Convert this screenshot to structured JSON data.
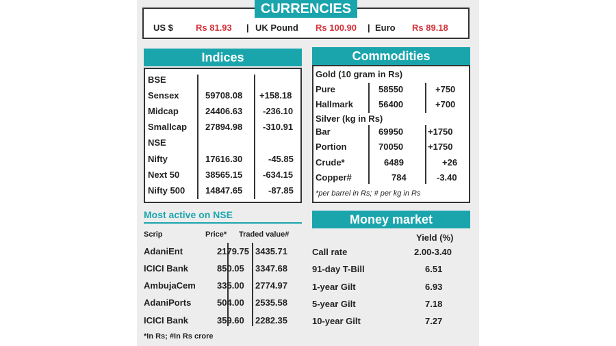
{
  "currencies": {
    "title": "CURRENCIES",
    "items": [
      {
        "name": "US $",
        "value": "Rs 81.93"
      },
      {
        "name": "UK Pound",
        "value": "Rs 100.90"
      },
      {
        "name": "Euro",
        "value": "Rs 89.18"
      }
    ],
    "separator": "|"
  },
  "indices": {
    "title": "Indices",
    "bse_label": "BSE",
    "nse_label": "NSE",
    "bse": [
      {
        "name": "Sensex",
        "value": "59708.08",
        "change": "+158.18"
      },
      {
        "name": "Midcap",
        "value": "24406.63",
        "change": "-236.10"
      },
      {
        "name": "Smallcap",
        "value": "27894.98",
        "change": "-310.91"
      }
    ],
    "nse": [
      {
        "name": "Nifty",
        "value": "17616.30",
        "change": "-45.85"
      },
      {
        "name": "Next 50",
        "value": "38565.15",
        "change": "-634.15"
      },
      {
        "name": "Nifty 500",
        "value": "14847.65",
        "change": "-87.85"
      }
    ]
  },
  "commodities": {
    "title": "Commodities",
    "gold_label": "Gold  (10 gram in Rs)",
    "silver_label": "Silver (kg in Rs)",
    "gold": [
      {
        "name": "Pure",
        "value": "58550",
        "change": "+750"
      },
      {
        "name": "Hallmark",
        "value": "56400",
        "change": "+700"
      }
    ],
    "silver": [
      {
        "name": "Bar",
        "value": "69950",
        "change": "+1750"
      },
      {
        "name": "Portion",
        "value": "70050",
        "change": "+1750"
      }
    ],
    "others": [
      {
        "name": "Crude*",
        "value": "6489",
        "change": "+26"
      },
      {
        "name": "Copper#",
        "value": "784",
        "change": "-3.40"
      }
    ],
    "footnote": "*per barrel in Rs; # per kg in Rs"
  },
  "most_active": {
    "title": "Most active on NSE",
    "headers": [
      "Scrip",
      "Price*",
      "Traded value#"
    ],
    "rows": [
      {
        "scrip": "AdaniEnt",
        "price": "2179.75",
        "traded": "3435.71"
      },
      {
        "scrip": "ICICI Bank",
        "price": "850.05",
        "traded": "3347.68"
      },
      {
        "scrip": "AmbujaCem",
        "price": "335.00",
        "traded": "2774.97"
      },
      {
        "scrip": "AdaniPorts",
        "price": "504.00",
        "traded": "2535.58"
      },
      {
        "scrip": "ICICI Bank",
        "price": "359.60",
        "traded": "2282.35"
      }
    ],
    "footnote": "*In Rs; #In Rs crore"
  },
  "money_market": {
    "title": "Money market",
    "yield_header": "Yield (%)",
    "rows": [
      {
        "name": "Call rate",
        "value": "2.00-3.40"
      },
      {
        "name": "91-day T-Bill",
        "value": "6.51"
      },
      {
        "name": "1-year Gilt",
        "value": "6.93"
      },
      {
        "name": "5-year Gilt",
        "value": "7.18"
      },
      {
        "name": "10-year Gilt",
        "value": "7.27"
      }
    ]
  },
  "colors": {
    "accent": "#1aa5ad",
    "negative": "#d4323a",
    "positive": "#1a8a4a"
  }
}
